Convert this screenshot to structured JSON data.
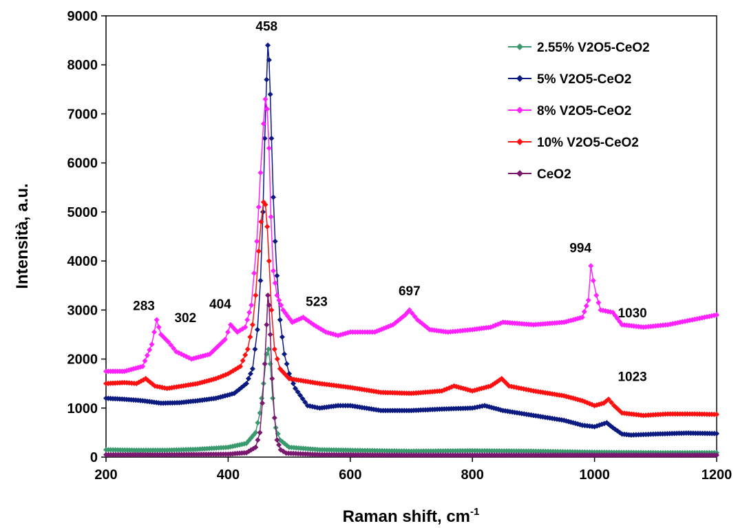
{
  "chart_data": {
    "type": "line",
    "title": "",
    "xlabel": "Raman shift, cm",
    "xlabel_superscript": "-1",
    "ylabel": "Intensità, a.u.",
    "xlim": [
      200,
      1200
    ],
    "ylim": [
      0,
      9000
    ],
    "xticks": [
      200,
      400,
      600,
      800,
      1000,
      1200
    ],
    "yticks": [
      0,
      1000,
      2000,
      3000,
      4000,
      5000,
      6000,
      7000,
      8000,
      9000
    ],
    "grid": false,
    "legend_position": "top-right",
    "series": [
      {
        "name": "2.55% V2O5-CeO2",
        "color": "#3a9a6e",
        "points": [
          [
            200,
            150
          ],
          [
            250,
            140
          ],
          [
            300,
            140
          ],
          [
            350,
            160
          ],
          [
            400,
            200
          ],
          [
            430,
            280
          ],
          [
            445,
            500
          ],
          [
            452,
            900
          ],
          [
            458,
            1500
          ],
          [
            463,
            2100
          ],
          [
            466,
            2200
          ],
          [
            469,
            1900
          ],
          [
            473,
            1200
          ],
          [
            478,
            600
          ],
          [
            485,
            350
          ],
          [
            500,
            200
          ],
          [
            550,
            150
          ],
          [
            600,
            140
          ],
          [
            700,
            120
          ],
          [
            800,
            130
          ],
          [
            900,
            120
          ],
          [
            1000,
            100
          ],
          [
            1100,
            90
          ],
          [
            1200,
            90
          ]
        ]
      },
      {
        "name": "5% V2O5-CeO2",
        "color": "#0a1a80",
        "points": [
          [
            200,
            1200
          ],
          [
            230,
            1180
          ],
          [
            260,
            1150
          ],
          [
            290,
            1100
          ],
          [
            320,
            1110
          ],
          [
            350,
            1150
          ],
          [
            380,
            1200
          ],
          [
            410,
            1300
          ],
          [
            430,
            1500
          ],
          [
            440,
            1800
          ],
          [
            448,
            2600
          ],
          [
            453,
            3600
          ],
          [
            457,
            5000
          ],
          [
            460,
            6500
          ],
          [
            463,
            7700
          ],
          [
            465,
            8400
          ],
          [
            467,
            8100
          ],
          [
            469,
            7400
          ],
          [
            471,
            6500
          ],
          [
            474,
            5300
          ],
          [
            477,
            4400
          ],
          [
            480,
            3700
          ],
          [
            485,
            2800
          ],
          [
            492,
            2100
          ],
          [
            500,
            1700
          ],
          [
            510,
            1400
          ],
          [
            530,
            1050
          ],
          [
            550,
            1000
          ],
          [
            580,
            1050
          ],
          [
            600,
            1050
          ],
          [
            650,
            950
          ],
          [
            700,
            950
          ],
          [
            750,
            980
          ],
          [
            800,
            1000
          ],
          [
            820,
            1050
          ],
          [
            850,
            950
          ],
          [
            900,
            850
          ],
          [
            950,
            750
          ],
          [
            980,
            650
          ],
          [
            1000,
            620
          ],
          [
            1020,
            700
          ],
          [
            1030,
            600
          ],
          [
            1045,
            470
          ],
          [
            1060,
            450
          ],
          [
            1100,
            470
          ],
          [
            1150,
            490
          ],
          [
            1200,
            480
          ]
        ]
      },
      {
        "name": "8% V2O5-CeO2",
        "color": "#ff22ff",
        "points": [
          [
            200,
            1750
          ],
          [
            230,
            1750
          ],
          [
            260,
            1850
          ],
          [
            275,
            2300
          ],
          [
            283,
            2800
          ],
          [
            290,
            2500
          ],
          [
            302,
            2350
          ],
          [
            315,
            2150
          ],
          [
            340,
            2000
          ],
          [
            370,
            2100
          ],
          [
            395,
            2400
          ],
          [
            404,
            2700
          ],
          [
            415,
            2550
          ],
          [
            428,
            2650
          ],
          [
            438,
            3100
          ],
          [
            447,
            4400
          ],
          [
            453,
            5800
          ],
          [
            458,
            6800
          ],
          [
            461,
            7300
          ],
          [
            464,
            7100
          ],
          [
            467,
            6300
          ],
          [
            470,
            4900
          ],
          [
            474,
            3800
          ],
          [
            480,
            3300
          ],
          [
            490,
            3000
          ],
          [
            505,
            2750
          ],
          [
            523,
            2850
          ],
          [
            540,
            2700
          ],
          [
            560,
            2550
          ],
          [
            580,
            2480
          ],
          [
            600,
            2550
          ],
          [
            640,
            2550
          ],
          [
            670,
            2700
          ],
          [
            690,
            2900
          ],
          [
            697,
            3000
          ],
          [
            710,
            2800
          ],
          [
            730,
            2600
          ],
          [
            760,
            2550
          ],
          [
            800,
            2600
          ],
          [
            830,
            2650
          ],
          [
            850,
            2750
          ],
          [
            900,
            2700
          ],
          [
            950,
            2750
          ],
          [
            980,
            2850
          ],
          [
            990,
            3200
          ],
          [
            994,
            3900
          ],
          [
            998,
            3600
          ],
          [
            1003,
            3300
          ],
          [
            1010,
            3000
          ],
          [
            1030,
            2950
          ],
          [
            1045,
            2700
          ],
          [
            1080,
            2650
          ],
          [
            1120,
            2700
          ],
          [
            1160,
            2800
          ],
          [
            1200,
            2900
          ]
        ]
      },
      {
        "name": "10% V2O5-CeO2",
        "color": "#ff1010",
        "points": [
          [
            200,
            1500
          ],
          [
            230,
            1520
          ],
          [
            250,
            1500
          ],
          [
            265,
            1600
          ],
          [
            280,
            1450
          ],
          [
            300,
            1400
          ],
          [
            350,
            1500
          ],
          [
            380,
            1600
          ],
          [
            400,
            1700
          ],
          [
            420,
            1850
          ],
          [
            432,
            2200
          ],
          [
            440,
            2700
          ],
          [
            445,
            3300
          ],
          [
            450,
            4200
          ],
          [
            454,
            4800
          ],
          [
            458,
            5200
          ],
          [
            461,
            5150
          ],
          [
            464,
            4700
          ],
          [
            467,
            4000
          ],
          [
            471,
            3000
          ],
          [
            476,
            2200
          ],
          [
            485,
            1800
          ],
          [
            500,
            1600
          ],
          [
            550,
            1500
          ],
          [
            600,
            1420
          ],
          [
            650,
            1320
          ],
          [
            700,
            1300
          ],
          [
            750,
            1350
          ],
          [
            770,
            1450
          ],
          [
            800,
            1350
          ],
          [
            830,
            1450
          ],
          [
            848,
            1600
          ],
          [
            860,
            1450
          ],
          [
            900,
            1350
          ],
          [
            950,
            1250
          ],
          [
            980,
            1150
          ],
          [
            1000,
            1050
          ],
          [
            1015,
            1100
          ],
          [
            1023,
            1180
          ],
          [
            1032,
            1050
          ],
          [
            1045,
            900
          ],
          [
            1080,
            850
          ],
          [
            1120,
            880
          ],
          [
            1160,
            880
          ],
          [
            1200,
            870
          ]
        ]
      },
      {
        "name": "CeO2",
        "color": "#7a1870",
        "points": [
          [
            200,
            50
          ],
          [
            300,
            50
          ],
          [
            400,
            60
          ],
          [
            430,
            90
          ],
          [
            445,
            200
          ],
          [
            452,
            500
          ],
          [
            456,
            1100
          ],
          [
            460,
            1900
          ],
          [
            463,
            2700
          ],
          [
            465,
            3300
          ],
          [
            467,
            3100
          ],
          [
            469,
            2500
          ],
          [
            472,
            1600
          ],
          [
            476,
            800
          ],
          [
            480,
            350
          ],
          [
            486,
            150
          ],
          [
            495,
            80
          ],
          [
            550,
            50
          ],
          [
            700,
            40
          ],
          [
            900,
            40
          ],
          [
            1100,
            40
          ],
          [
            1200,
            40
          ]
        ]
      }
    ],
    "annotations": [
      {
        "text": "458",
        "x": 463,
        "y": 8700
      },
      {
        "text": "283",
        "x": 262,
        "y": 3000
      },
      {
        "text": "302",
        "x": 330,
        "y": 2750
      },
      {
        "text": "404",
        "x": 387,
        "y": 3030
      },
      {
        "text": "523",
        "x": 545,
        "y": 3080
      },
      {
        "text": "697",
        "x": 697,
        "y": 3300
      },
      {
        "text": "994",
        "x": 977,
        "y": 4180
      },
      {
        "text": "1030",
        "x": 1062,
        "y": 2850
      },
      {
        "text": "1023",
        "x": 1062,
        "y": 1550
      }
    ]
  }
}
